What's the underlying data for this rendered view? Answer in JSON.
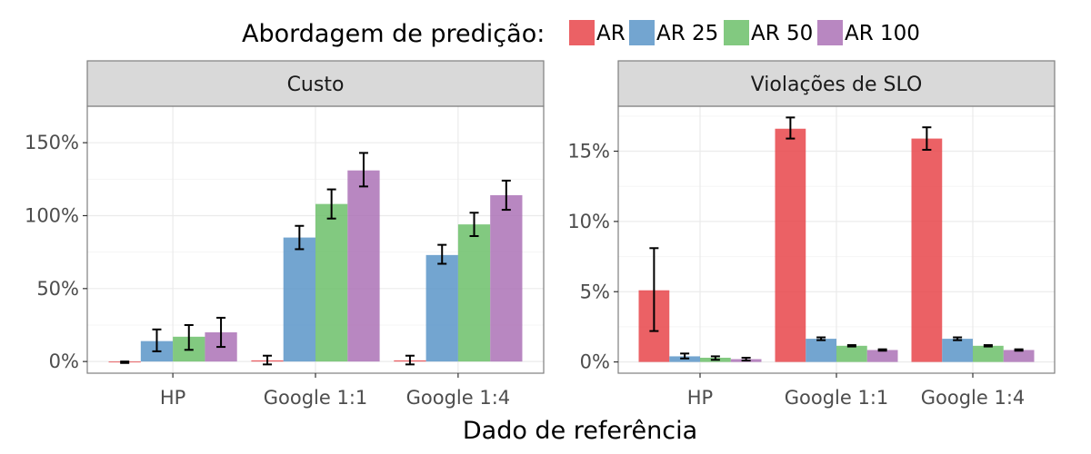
{
  "colors": {
    "series": [
      "#e8454a",
      "#5b95c8",
      "#6cc06a",
      "#ab72b6"
    ],
    "strip_fill": "#d9d9d9",
    "panel_border": "#7f7f7f",
    "grid_major": "#ebebeb",
    "grid_minor": "#f5f5f5"
  },
  "legend": {
    "title": "Abordagem de predição:",
    "items": [
      "AR",
      "AR 25",
      "AR 50",
      "AR 100"
    ]
  },
  "x_axis_title": "Dado de referência",
  "chart_data": [
    {
      "type": "bar",
      "title": "Custo",
      "categories": [
        "HP",
        "Google 1:1",
        "Google 1:4"
      ],
      "ylim": [
        -8,
        175
      ],
      "yticks": [
        0,
        50,
        100,
        150
      ],
      "ytick_labels": [
        "0%",
        "50%",
        "100%",
        "150%"
      ],
      "grid": true,
      "series": [
        {
          "name": "AR",
          "values": [
            -0.5,
            0.8,
            0.8
          ],
          "err_low": [
            -1,
            -2,
            -2
          ],
          "err_high": [
            0,
            4,
            4
          ]
        },
        {
          "name": "AR 25",
          "values": [
            14,
            85,
            73
          ],
          "err_low": [
            7,
            77,
            67
          ],
          "err_high": [
            22,
            93,
            80
          ]
        },
        {
          "name": "AR 50",
          "values": [
            17,
            108,
            94
          ],
          "err_low": [
            8,
            98,
            86
          ],
          "err_high": [
            25,
            118,
            102
          ]
        },
        {
          "name": "AR 100",
          "values": [
            20,
            131,
            114
          ],
          "err_low": [
            10,
            120,
            104
          ],
          "err_high": [
            30,
            143,
            124
          ]
        }
      ]
    },
    {
      "type": "bar",
      "title": "Violações de SLO",
      "categories": [
        "HP",
        "Google 1:1",
        "Google 1:4"
      ],
      "ylim": [
        -0.8,
        18.2
      ],
      "yticks": [
        0,
        5,
        10,
        15
      ],
      "ytick_labels": [
        "0%",
        "5%",
        "10%",
        "15%"
      ],
      "grid": true,
      "series": [
        {
          "name": "AR",
          "values": [
            5.1,
            16.6,
            15.9
          ],
          "err_low": [
            2.2,
            15.9,
            15.1
          ],
          "err_high": [
            8.1,
            17.4,
            16.7
          ]
        },
        {
          "name": "AR 25",
          "values": [
            0.4,
            1.65,
            1.65
          ],
          "err_low": [
            0.25,
            1.55,
            1.55
          ],
          "err_high": [
            0.6,
            1.75,
            1.75
          ]
        },
        {
          "name": "AR 50",
          "values": [
            0.3,
            1.15,
            1.15
          ],
          "err_low": [
            0.15,
            1.1,
            1.1
          ],
          "err_high": [
            0.4,
            1.2,
            1.2
          ]
        },
        {
          "name": "AR 100",
          "values": [
            0.2,
            0.85,
            0.85
          ],
          "err_low": [
            0.1,
            0.8,
            0.8
          ],
          "err_high": [
            0.3,
            0.9,
            0.9
          ]
        }
      ]
    }
  ]
}
